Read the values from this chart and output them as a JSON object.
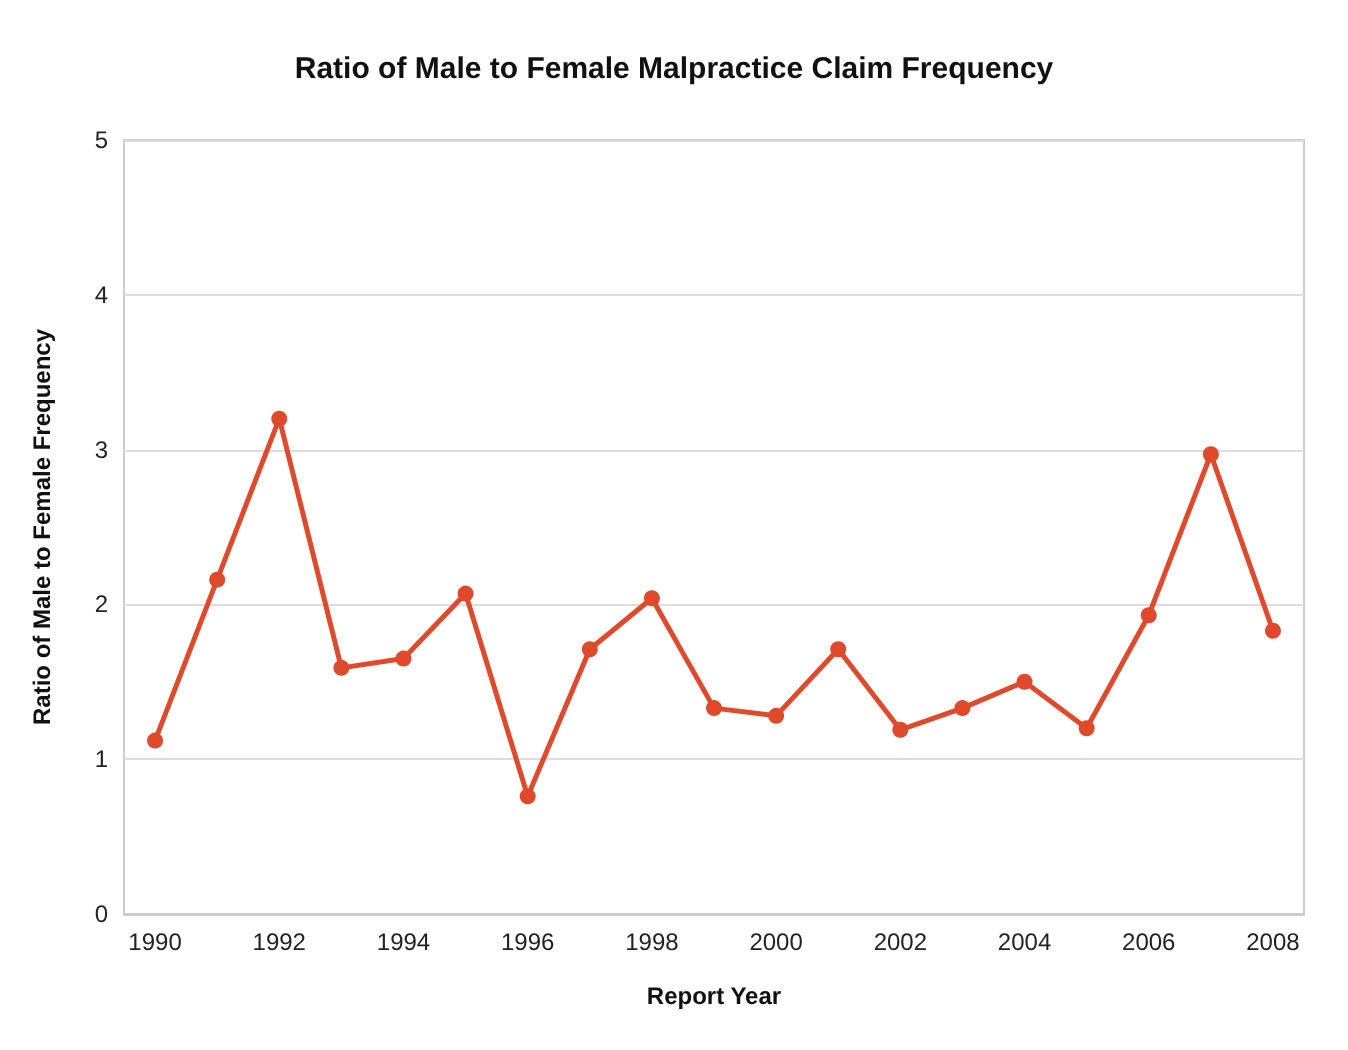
{
  "chart_data": {
    "type": "line",
    "title": "Ratio of Male to Female Malpractice Claim Frequency",
    "xlabel": "Report Year",
    "ylabel": "Ratio of Male to Female Frequency",
    "categories": [
      "1990",
      null,
      "1992",
      null,
      "1994",
      null,
      "1996",
      null,
      "1998",
      null,
      "2000",
      null,
      "2002",
      null,
      "2004",
      null,
      "2006",
      null,
      "2008"
    ],
    "series": [
      {
        "color": "#e04a2c",
        "values": [
          1.12,
          2.16,
          3.2,
          1.59,
          1.65,
          2.07,
          0.76,
          1.71,
          2.04,
          1.33,
          1.28,
          1.71,
          1.19,
          1.33,
          1.5,
          1.2,
          1.93,
          2.97,
          1.83
        ]
      }
    ],
    "ylim": [
      0,
      5
    ],
    "yticks": [
      0,
      1,
      2,
      3,
      4,
      5
    ],
    "grid": "y",
    "marker": "circle",
    "line_style": "solid"
  }
}
